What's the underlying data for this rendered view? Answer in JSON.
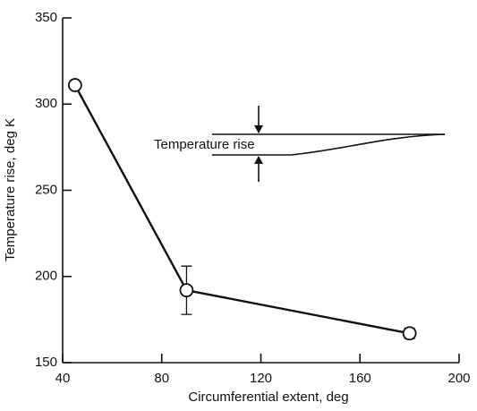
{
  "chart_data": {
    "type": "line",
    "xlabel": "Circumferential extent, deg",
    "ylabel": "Temperature rise, deg K",
    "annotation": "Temperature rise",
    "x": [
      45,
      90,
      180
    ],
    "series": [
      {
        "color": "#111111",
        "values": [
          311,
          192,
          167
        ],
        "errors": [
          null,
          14,
          3
        ]
      }
    ],
    "xlim": [
      40,
      200
    ],
    "xticks": [
      40,
      80,
      120,
      160,
      200
    ],
    "ylim": [
      150,
      350
    ],
    "yticks": [
      150,
      200,
      250,
      300,
      350
    ],
    "grid": false
  }
}
